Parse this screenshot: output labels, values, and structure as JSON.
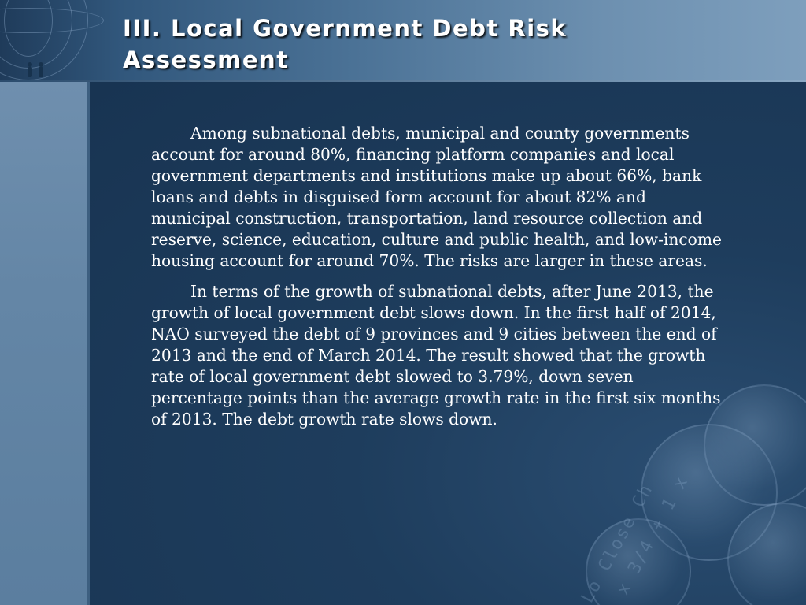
{
  "slide": {
    "title": "III. Local Government Debt Risk Assessment",
    "paragraphs": [
      "Among subnational debts, municipal and county governments account for around 80%, financing platform companies and local government departments and institutions make up about 66%, bank loans and debts in disguised form account for about 82% and municipal construction, transportation, land resource collection and reserve, science, education, culture and public health, and low-income housing account for around 70%. The risks are larger in these areas.",
      "In terms of the growth of subnational debts, after June 2013, the growth of local government debt slows down. In the first half of 2014, NAO surveyed the debt of 9 provinces and 9 cities between the end of 2013 and the end of March 2014. The result showed that the growth rate of local government debt slowed to 3.79%, down seven percentage points than the average growth rate in the first six months of 2013. The debt growth rate slows down."
    ]
  },
  "decoration": {
    "corner_icon": "globe-icon",
    "figures_icon": "people-icon",
    "background_image": "coins-image",
    "colors": {
      "content_background": "#1c3a58",
      "header_band": "#6d90b0",
      "left_strip": "#6486a6",
      "text": "#ffffff"
    }
  }
}
